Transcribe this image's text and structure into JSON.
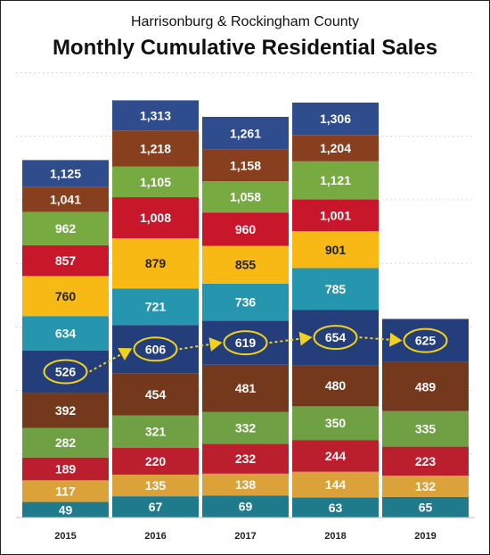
{
  "chart_data": {
    "type": "bar",
    "subtitle": "Harrisonburg & Rockingham County",
    "title": "Monthly Cumulative Residential Sales",
    "categories": [
      "2015",
      "2016",
      "2017",
      "2018",
      "2019"
    ],
    "ylim": [
      0,
      1400
    ],
    "grid": true,
    "layers": [
      {
        "color": "#1f7a8c",
        "text_color": "#ffffff",
        "values": [
          49,
          67,
          69,
          63,
          65
        ]
      },
      {
        "color": "#dba23a",
        "text_color": "#ffffff",
        "values": [
          117,
          135,
          138,
          144,
          132
        ]
      },
      {
        "color": "#bb1e2d",
        "text_color": "#ffffff",
        "values": [
          189,
          220,
          232,
          244,
          223
        ]
      },
      {
        "color": "#6fa043",
        "text_color": "#ffffff",
        "values": [
          282,
          321,
          332,
          350,
          335
        ]
      },
      {
        "color": "#74391d",
        "text_color": "#ffffff",
        "values": [
          392,
          454,
          481,
          480,
          489
        ]
      },
      {
        "color": "#233e7b",
        "text_color": "#ffffff",
        "values": [
          526,
          606,
          619,
          654,
          625
        ]
      },
      {
        "color": "#2596ad",
        "text_color": "#ffffff",
        "values": [
          634,
          721,
          736,
          785,
          null
        ]
      },
      {
        "color": "#f9b915",
        "text_color": "#222222",
        "values": [
          760,
          879,
          855,
          901,
          null
        ]
      },
      {
        "color": "#c8162b",
        "text_color": "#ffffff",
        "values": [
          857,
          1008,
          960,
          1001,
          null
        ]
      },
      {
        "color": "#78aa42",
        "text_color": "#ffffff",
        "values": [
          962,
          1105,
          1058,
          1121,
          null
        ]
      },
      {
        "color": "#883f1e",
        "text_color": "#ffffff",
        "values": [
          1041,
          1218,
          1158,
          1204,
          null
        ]
      },
      {
        "color": "#2f4c8c",
        "text_color": "#ffffff",
        "values": [
          1125,
          1313,
          1261,
          1306,
          null
        ]
      }
    ],
    "value_labels": [
      [
        "49",
        "117",
        "189",
        "282",
        "392",
        "526",
        "634",
        "760",
        "857",
        "962",
        "1,041",
        "1,125"
      ],
      [
        "67",
        "135",
        "220",
        "321",
        "454",
        "606",
        "721",
        "879",
        "1,008",
        "1,105",
        "1,218",
        "1,313"
      ],
      [
        "69",
        "138",
        "232",
        "332",
        "481",
        "619",
        "736",
        "855",
        "960",
        "1,058",
        "1,158",
        "1,261"
      ],
      [
        "63",
        "144",
        "244",
        "350",
        "480",
        "654",
        "785",
        "901",
        "1,001",
        "1,121",
        "1,204",
        "1,306"
      ],
      [
        "65",
        "132",
        "223",
        "335",
        "489",
        "625"
      ]
    ],
    "annotations": {
      "highlight_layer": 5,
      "circle_color": "#f2d21a",
      "arrows_between_highlights": true
    }
  }
}
